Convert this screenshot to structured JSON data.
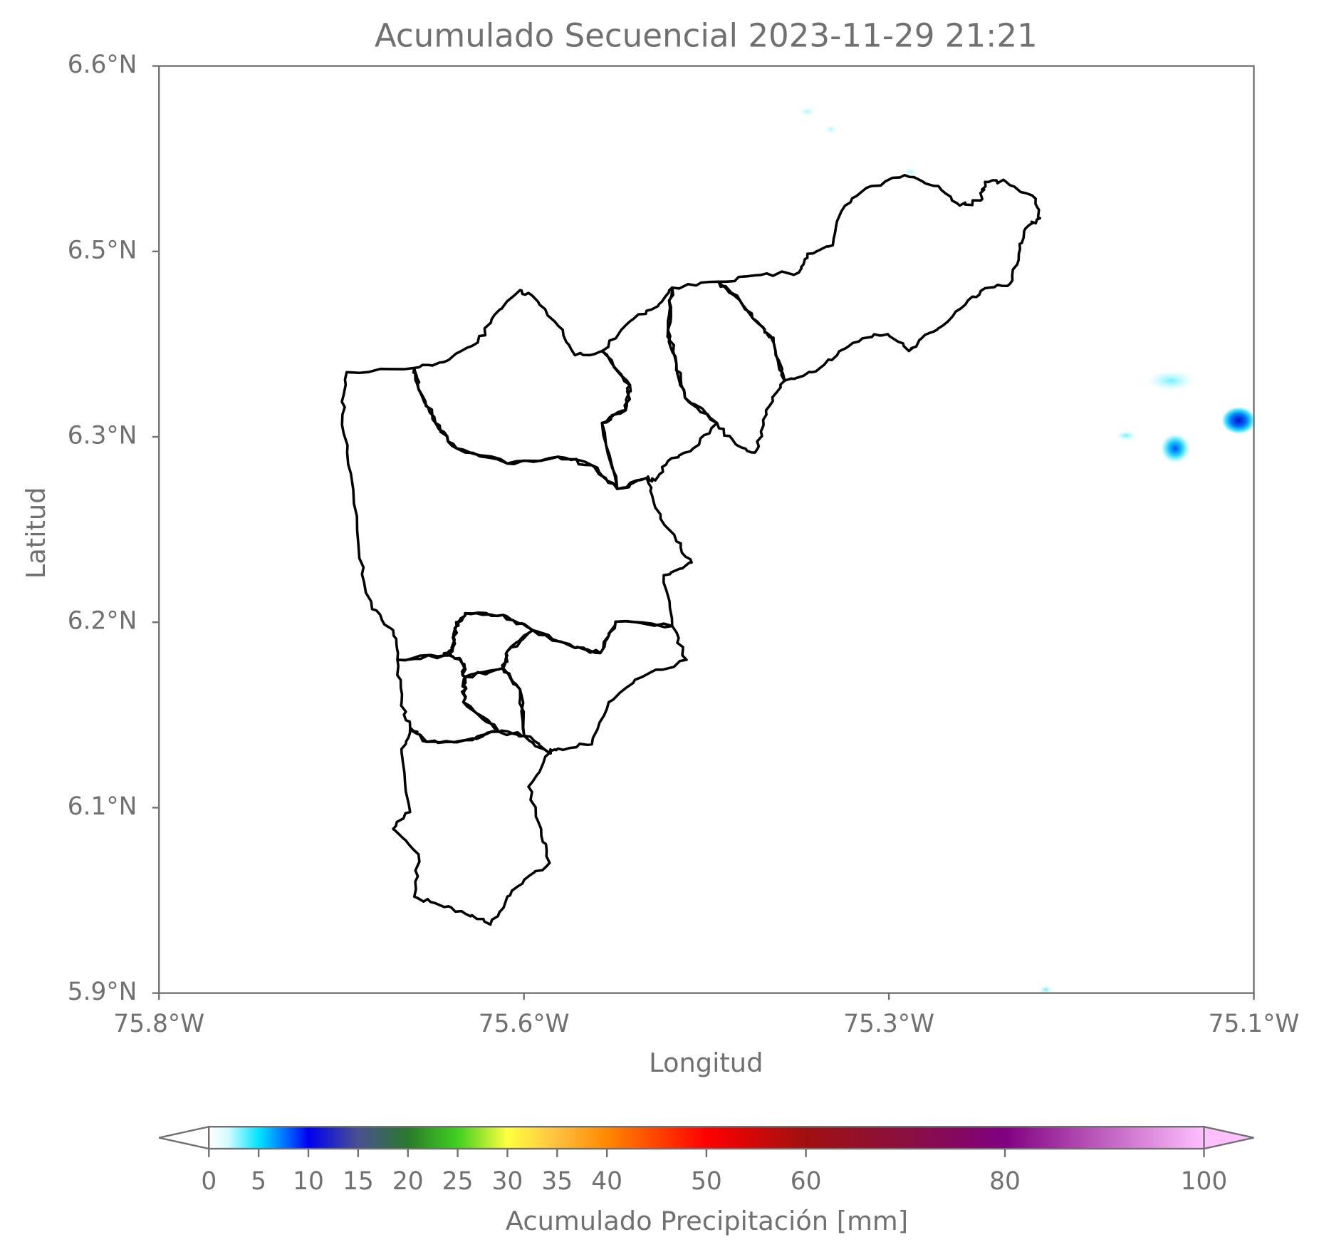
{
  "map": {
    "title": "Acumulado Secuencial 2023-11-29 21:21",
    "x_axis": {
      "label": "Longitud",
      "ticks": [
        "75.8°W",
        "75.6°W",
        "75.3°W",
        "75.1°W"
      ]
    },
    "y_axis": {
      "label": "Latitud",
      "ticks": [
        "6.6°N",
        "6.5°N",
        "6.3°N",
        "6.2°N",
        "6.1°N",
        "5.9°N"
      ]
    },
    "colorbar": {
      "label": "Acumulado Precipitación [mm]",
      "range": [
        0,
        100
      ],
      "ticks": [
        0,
        5,
        10,
        15,
        20,
        25,
        30,
        35,
        40,
        50,
        60,
        80,
        100
      ]
    }
  }
}
